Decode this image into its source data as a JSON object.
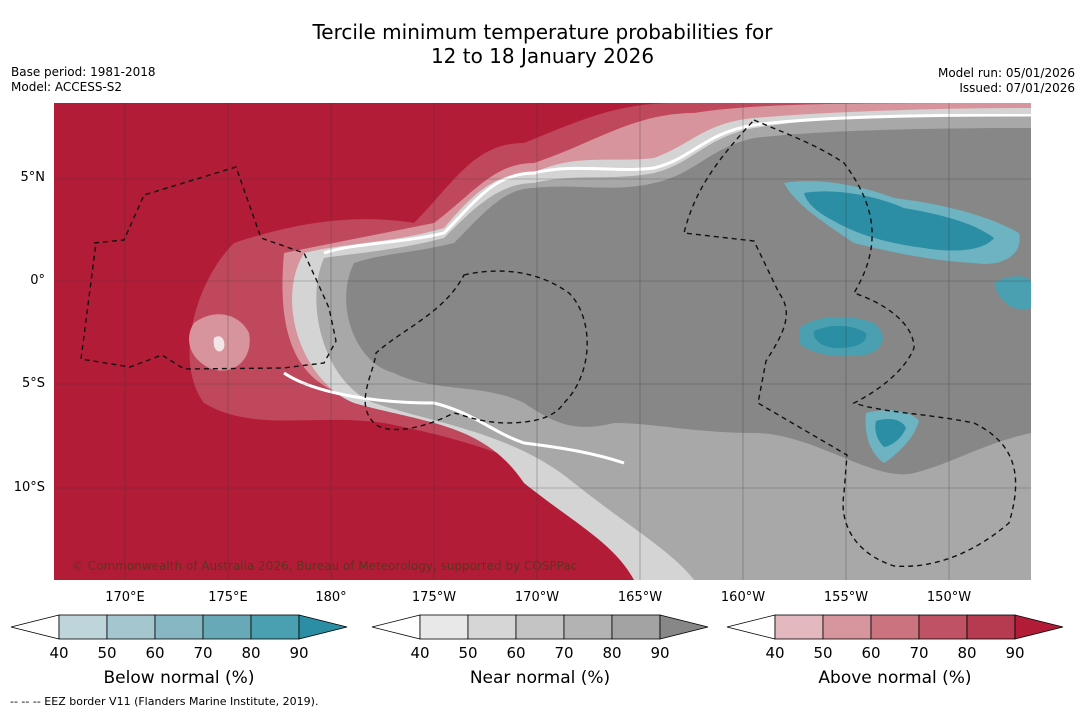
{
  "title": {
    "line1": "Tercile minimum temperature probabilities for",
    "line2": "12 to 18 January 2026"
  },
  "meta": {
    "base_period": "Base period: 1981-2018",
    "model": "Model: ACCESS-S2",
    "model_run": "Model run: 05/01/2026",
    "issued": "Issued: 07/01/2026"
  },
  "map": {
    "lat_labels": [
      "5°N",
      "0°",
      "5°S",
      "10°S"
    ],
    "lon_labels": [
      "170°E",
      "175°E",
      "180°",
      "175°W",
      "170°W",
      "165°W",
      "160°W",
      "155°W",
      "150°W"
    ],
    "copyright": "© Commonwealth of Australia 2026, Bureau of Meteorology, supported by COSPPac",
    "colors": {
      "above_strong": "#b31c37",
      "above_mid": "#c0485c",
      "above_light": "#d8949c",
      "near_dark": "#878787",
      "near_mid": "#a8a8a8",
      "near_light": "#d4d4d4",
      "below_strong": "#2b8ea4",
      "below_light": "#6db3c2"
    }
  },
  "colorbars": {
    "below": {
      "title": "Below normal (%)",
      "ticks": [
        "40",
        "50",
        "60",
        "70",
        "80",
        "90"
      ],
      "colors": [
        "#ffffff",
        "#bed5dc",
        "#a4c7cf",
        "#86b7c2",
        "#67a9b6",
        "#4aa0b1",
        "#2b8ea4"
      ]
    },
    "near": {
      "title": "Near normal (%)",
      "ticks": [
        "40",
        "50",
        "60",
        "70",
        "80",
        "90"
      ],
      "colors": [
        "#ffffff",
        "#e8e8e8",
        "#d6d6d6",
        "#c4c4c4",
        "#b3b3b3",
        "#a3a3a3",
        "#878787"
      ]
    },
    "above": {
      "title": "Above normal (%)",
      "ticks": [
        "40",
        "50",
        "60",
        "70",
        "80",
        "90"
      ],
      "colors": [
        "#ffffff",
        "#e3b8be",
        "#d7959d",
        "#cb737f",
        "#bf5264",
        "#b63a50",
        "#b31c37"
      ]
    }
  },
  "footnote": "-- -- -- EEZ border V11 (Flanders Marine Institute, 2019)."
}
